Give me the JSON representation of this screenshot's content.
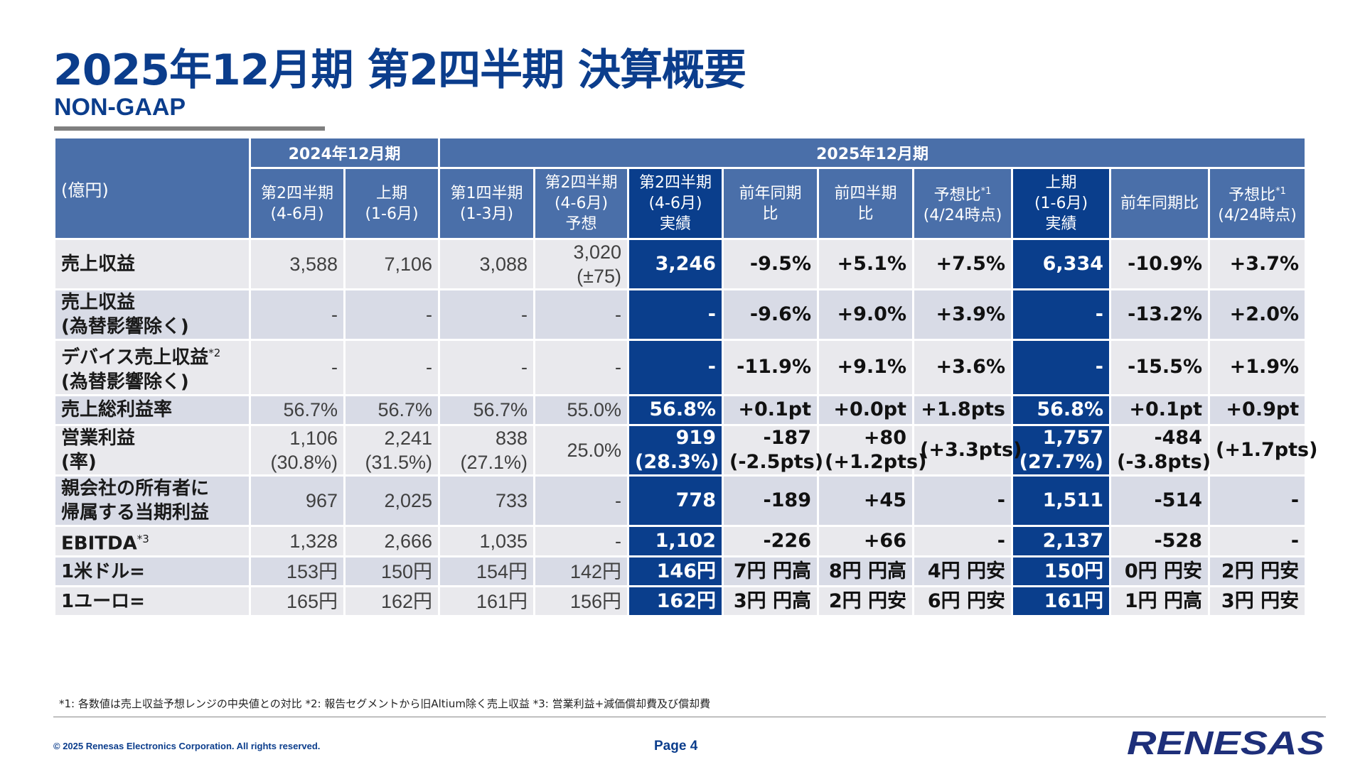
{
  "title": "2025年12月期 第2四半期 決算概要",
  "subtitle": "NON-GAAP",
  "table": {
    "unit_label": "(億円)",
    "group_2024": "2024年12月期",
    "group_2025": "2025年12月期",
    "col_headers": [
      [
        "第2四半期",
        "(4-6月)"
      ],
      [
        "上期",
        "(1-6月)"
      ],
      [
        "第1四半期",
        "(1-3月)"
      ],
      [
        "第2四半期",
        "(4-6月)",
        "予想"
      ],
      [
        "第2四半期",
        "(4-6月)",
        "実績"
      ],
      [
        "前年同期",
        "比"
      ],
      [
        "前四半期",
        "比"
      ],
      [
        "予想比",
        "(4/24時点)"
      ],
      [
        "上期",
        "(1-6月)",
        "実績"
      ],
      [
        "前年同期比"
      ],
      [
        "予想比",
        "(4/24時点)"
      ]
    ],
    "col_headers_sup": {
      "7": "*1",
      "10": "*1"
    },
    "rows": [
      {
        "label": [
          "売上収益"
        ],
        "cells": [
          [
            "3,588"
          ],
          [
            "7,106"
          ],
          [
            "3,088"
          ],
          [
            "3,020",
            "(±75)"
          ],
          [
            "3,246"
          ],
          [
            "-9.5%"
          ],
          [
            "+5.1%"
          ],
          [
            "+7.5%"
          ],
          [
            "6,334"
          ],
          [
            "-10.9%"
          ],
          [
            "+3.7%"
          ]
        ]
      },
      {
        "label": [
          "売上収益",
          "(為替影響除く)"
        ],
        "cells": [
          [
            "-"
          ],
          [
            "-"
          ],
          [
            "-"
          ],
          [
            "-"
          ],
          [
            "-"
          ],
          [
            "-9.6%"
          ],
          [
            "+9.0%"
          ],
          [
            "+3.9%"
          ],
          [
            "-"
          ],
          [
            "-13.2%"
          ],
          [
            "+2.0%"
          ]
        ]
      },
      {
        "label": [
          "デバイス売上収益",
          "(為替影響除く)"
        ],
        "label_sup": "*2",
        "cells": [
          [
            "-"
          ],
          [
            "-"
          ],
          [
            "-"
          ],
          [
            "-"
          ],
          [
            "-"
          ],
          [
            "-11.9%"
          ],
          [
            "+9.1%"
          ],
          [
            "+3.6%"
          ],
          [
            "-"
          ],
          [
            "-15.5%"
          ],
          [
            "+1.9%"
          ]
        ]
      },
      {
        "label": [
          "売上総利益率"
        ],
        "cells": [
          [
            "56.7%"
          ],
          [
            "56.7%"
          ],
          [
            "56.7%"
          ],
          [
            "55.0%"
          ],
          [
            "56.8%"
          ],
          [
            "+0.1pt"
          ],
          [
            "+0.0pt"
          ],
          [
            "+1.8pts"
          ],
          [
            "56.8%"
          ],
          [
            "+0.1pt"
          ],
          [
            "+0.9pt"
          ]
        ]
      },
      {
        "label": [
          "営業利益",
          "(率)"
        ],
        "cells": [
          [
            "1,106",
            "(30.8%)"
          ],
          [
            "2,241",
            "(31.5%)"
          ],
          [
            "838",
            "(27.1%)"
          ],
          [
            "25.0%"
          ],
          [
            "919",
            "(28.3%)"
          ],
          [
            "-187",
            "(-2.5pts)"
          ],
          [
            "+80",
            "(+1.2pts)"
          ],
          [
            "(+3.3pts)"
          ],
          [
            "1,757",
            "(27.7%)"
          ],
          [
            "-484",
            "(-3.8pts)"
          ],
          [
            "(+1.7pts)"
          ]
        ]
      },
      {
        "label": [
          "親会社の所有者に",
          "帰属する当期利益"
        ],
        "cells": [
          [
            "967"
          ],
          [
            "2,025"
          ],
          [
            "733"
          ],
          [
            "-"
          ],
          [
            "778"
          ],
          [
            "-189"
          ],
          [
            "+45"
          ],
          [
            "-"
          ],
          [
            "1,511"
          ],
          [
            "-514"
          ],
          [
            "-"
          ]
        ]
      },
      {
        "label": [
          "EBITDA"
        ],
        "label_sup": "*3",
        "cells": [
          [
            "1,328"
          ],
          [
            "2,666"
          ],
          [
            "1,035"
          ],
          [
            "-"
          ],
          [
            "1,102"
          ],
          [
            "-226"
          ],
          [
            "+66"
          ],
          [
            "-"
          ],
          [
            "2,137"
          ],
          [
            "-528"
          ],
          [
            "-"
          ]
        ]
      },
      {
        "label": [
          "1米ドル="
        ],
        "cells": [
          [
            "153円"
          ],
          [
            "150円"
          ],
          [
            "154円"
          ],
          [
            "142円"
          ],
          [
            "146円"
          ],
          [
            "7円 円高"
          ],
          [
            "8円 円高"
          ],
          [
            "4円 円安"
          ],
          [
            "150円"
          ],
          [
            "0円 円安"
          ],
          [
            "2円 円安"
          ]
        ]
      },
      {
        "label": [
          "1ユーロ="
        ],
        "cells": [
          [
            "165円"
          ],
          [
            "162円"
          ],
          [
            "161円"
          ],
          [
            "156円"
          ],
          [
            "162円"
          ],
          [
            "3円 円高"
          ],
          [
            "2円 円安"
          ],
          [
            "6円 円安"
          ],
          [
            "161円"
          ],
          [
            "1円 円高"
          ],
          [
            "3円 円安"
          ]
        ]
      }
    ]
  },
  "footnote": "*1: 各数値は売上収益予想レンジの中央値との対比  *2: 報告セグメントから旧Altium除く売上収益  *3: 営業利益+減価償却費及び償却費",
  "copyright": "© 2025 Renesas Electronics Corporation. All rights reserved.",
  "page_label": "Page 4",
  "logo_text": "RENESAS",
  "colors": {
    "brand": "#0b3d8c",
    "header": "#4a6fa9",
    "highlight": "#0a3e8c",
    "row_light": "#e9e9ed",
    "row_alt": "#d8dbe6"
  }
}
